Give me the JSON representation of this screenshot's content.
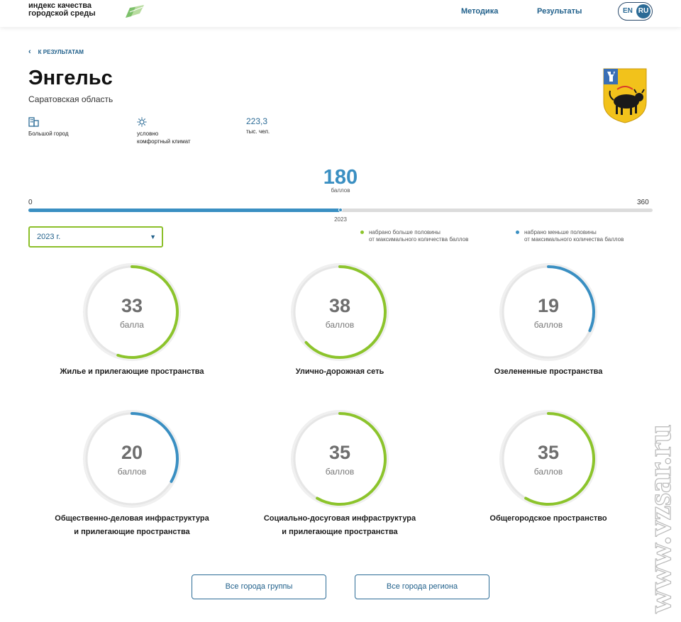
{
  "header": {
    "logo_line1": "индекс качества",
    "logo_line2": "городской среды",
    "nav_method": "Методика",
    "nav_results": "Результаты",
    "lang_en": "EN",
    "lang_ru": "RU"
  },
  "back_link": "К РЕЗУЛЬТАТАМ",
  "city": {
    "name": "Энгельс",
    "region": "Саратовская область"
  },
  "facts": {
    "size": "Большой город",
    "climate_line1": "условно",
    "climate_line2": "комфортный климат",
    "population": "223,3",
    "population_unit": "тыс. чел."
  },
  "total": {
    "score": "180",
    "unit": "баллов",
    "min": "0",
    "max": "360",
    "year": "2023",
    "fraction": 0.5
  },
  "year_select": "2023 г.",
  "legend": {
    "more_line1": "набрано больше половины",
    "more_line2": "от максимального количества баллов",
    "less_line1": "набрано меньше половины",
    "less_line2": "от максимального количества баллов"
  },
  "colors": {
    "good": "#8cc42c",
    "bad": "#3a8fc2",
    "accent": "#2b6b96"
  },
  "categories": [
    {
      "value": "33",
      "unit": "балла",
      "label_line1": "Жилье и прилегающие пространства",
      "label_line2": "",
      "fraction": 0.55,
      "status": "good"
    },
    {
      "value": "38",
      "unit": "баллов",
      "label_line1": "Улично-дорожная сеть",
      "label_line2": "",
      "fraction": 0.633,
      "status": "good"
    },
    {
      "value": "19",
      "unit": "баллов",
      "label_line1": "Озелененные пространства",
      "label_line2": "",
      "fraction": 0.317,
      "status": "bad"
    },
    {
      "value": "20",
      "unit": "баллов",
      "label_line1": "Общественно-деловая инфраструктура",
      "label_line2": "и прилегающие пространства",
      "fraction": 0.333,
      "status": "bad"
    },
    {
      "value": "35",
      "unit": "баллов",
      "label_line1": "Социально-досуговая инфраструктура",
      "label_line2": "и прилегающие пространства",
      "fraction": 0.583,
      "status": "good"
    },
    {
      "value": "35",
      "unit": "баллов",
      "label_line1": "Общегородское пространство",
      "label_line2": "",
      "fraction": 0.583,
      "status": "good"
    }
  ],
  "buttons": {
    "group_cities": "Все города группы",
    "region_cities": "Все города региона"
  },
  "watermark": "www.vzsar.ru"
}
